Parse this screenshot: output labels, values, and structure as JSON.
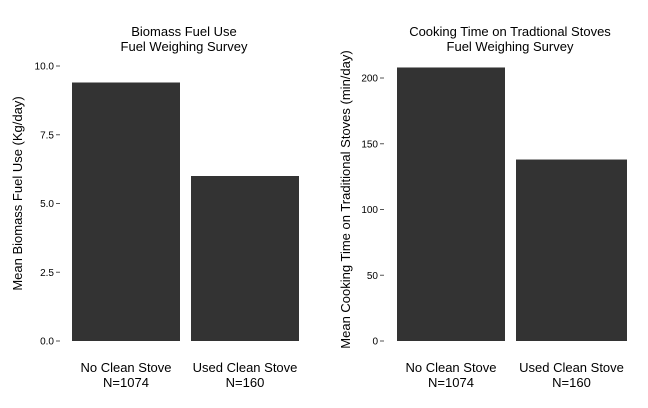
{
  "chart_data": [
    {
      "type": "bar",
      "title": [
        "Biomass Fuel Use",
        "Fuel Weighing Survey"
      ],
      "xlabel": "",
      "ylabel": "Mean Biomass Fuel Use (Kg/day)",
      "categories": [
        [
          "No Clean Stove",
          "N=1074"
        ],
        [
          "Used Clean Stove",
          "N=160"
        ]
      ],
      "values": [
        9.4,
        6.0
      ],
      "ylim": [
        0,
        10.0
      ],
      "yticks": [
        0,
        2.5,
        5.0,
        7.5,
        10.0
      ],
      "ytick_labels": [
        "0.0",
        "2.5",
        "5.0",
        "7.5",
        "10.0"
      ],
      "bar_color": "#333333",
      "grid": false,
      "legend": "none"
    },
    {
      "type": "bar",
      "title": [
        "Cooking Time on Tradtional Stoves",
        "Fuel Weighing Survey"
      ],
      "xlabel": "",
      "ylabel": "Mean Cooking Time on Traditional Stoves (min/day)",
      "categories": [
        [
          "No Clean Stove",
          "N=1074"
        ],
        [
          "Used Clean Stove",
          "N=160"
        ]
      ],
      "values": [
        208,
        138
      ],
      "ylim": [
        0,
        200
      ],
      "yticks": [
        0,
        50,
        100,
        150,
        200
      ],
      "ytick_labels": [
        "0",
        "50",
        "100",
        "150",
        "200"
      ],
      "bar_color": "#333333",
      "grid": false,
      "legend": "none"
    }
  ]
}
